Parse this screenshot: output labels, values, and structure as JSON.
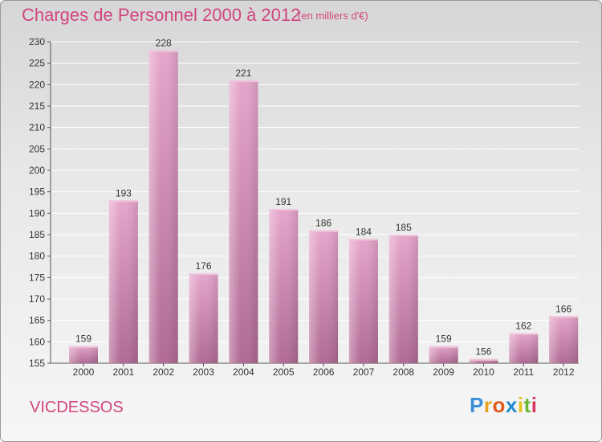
{
  "header": {
    "title": "Charges de Personnel 2000 à 2012",
    "subtitle": "(en milliers d'€)"
  },
  "footer": {
    "commune": "VICDESSOS",
    "logo_letters": [
      "P",
      "r",
      "o",
      "x",
      "i",
      "t",
      "i"
    ],
    "logo_colors": [
      "#3a8fd8",
      "#e8a21a",
      "#e25a1c",
      "#1f8bd1",
      "#e8c21a",
      "#69b534",
      "#d6355e"
    ]
  },
  "colors": {
    "bar": "#c978a6",
    "bar_light": "#e6a6cc",
    "accent": "#d1457f"
  },
  "chart_data": {
    "type": "bar",
    "title": "Charges de Personnel 2000 à 2012",
    "subtitle": "(en milliers d'€)",
    "categories": [
      "2000",
      "2001",
      "2002",
      "2003",
      "2004",
      "2005",
      "2006",
      "2007",
      "2008",
      "2009",
      "2010",
      "2011",
      "2012"
    ],
    "values": [
      159,
      193,
      228,
      176,
      221,
      191,
      186,
      184,
      185,
      159,
      156,
      162,
      166
    ],
    "ylim": [
      155,
      230
    ],
    "yticks": [
      155,
      160,
      165,
      170,
      175,
      180,
      185,
      190,
      195,
      200,
      205,
      210,
      215,
      220,
      225,
      230
    ],
    "grid": true,
    "data_labels": true
  }
}
